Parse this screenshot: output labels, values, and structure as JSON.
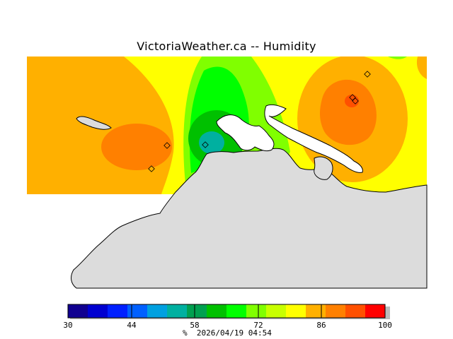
{
  "title": "VictoriaWeather.ca -- Humidity",
  "legend": {
    "tick_labels": [
      "30",
      "44",
      "58",
      "72",
      "86",
      "100"
    ],
    "unit": "%",
    "timestamp": "2026/04/19 04:54",
    "colors": [
      "#100090",
      "#0000d0",
      "#0020ff",
      "#0060ff",
      "#00a0e0",
      "#00b0a0",
      "#00a050",
      "#00c000",
      "#00ff00",
      "#80ff00",
      "#c8ff00",
      "#ffff00",
      "#ffb000",
      "#ff8000",
      "#ff5000",
      "#ff0000"
    ]
  },
  "map": {
    "field_colors": {
      "high_orange": "#ffb000",
      "dark_orange": "#ff8000",
      "yellow": "#ffff00",
      "light_green": "#80ff00",
      "green": "#00ff00",
      "dark_green": "#00c000",
      "teal": "#00b0a0",
      "land": "#dcdcdc"
    }
  }
}
